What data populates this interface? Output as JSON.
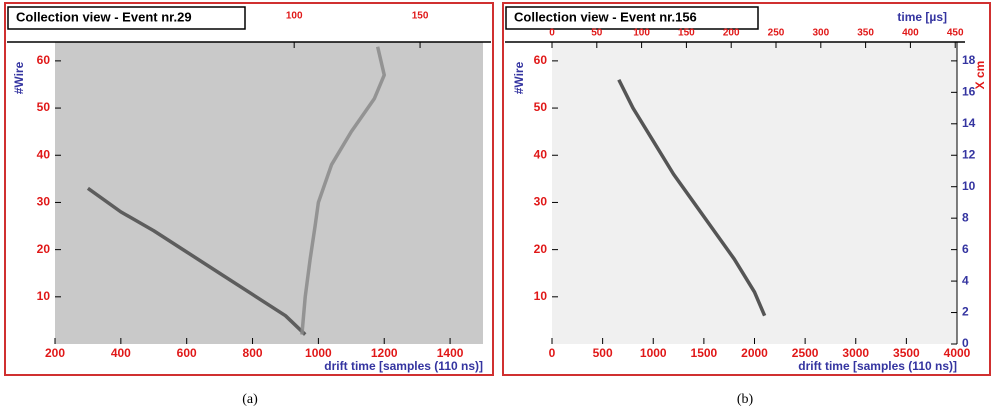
{
  "chart_data": [
    {
      "type": "line",
      "title": "Collection view - Event nr.29",
      "caption": "(a)",
      "xlabel": "drift time [samples (110 ns)]",
      "ylabel": "#Wire",
      "xlim": [
        200,
        1500
      ],
      "xticks": [
        200,
        400,
        600,
        800,
        1000,
        1200,
        1400
      ],
      "ylim": [
        0,
        64
      ],
      "yticks": [
        10,
        20,
        30,
        40,
        50,
        60
      ],
      "x2lim": [
        5,
        175
      ],
      "x2ticks": [
        100,
        150
      ],
      "background": "#c9c9c9",
      "series": [
        {
          "color": "#4a4a4a",
          "x": [
            300,
            400,
            500,
            600,
            700,
            800,
            900,
            960
          ],
          "values": [
            33,
            28,
            24,
            19.5,
            15,
            10.5,
            6,
            2
          ]
        },
        {
          "color": "#8a8a8a",
          "x": [
            950,
            960,
            975,
            990,
            1000,
            1040,
            1100,
            1170,
            1200,
            1180
          ],
          "values": [
            2,
            10,
            18,
            25,
            30,
            38,
            45,
            52,
            57,
            63
          ]
        }
      ]
    },
    {
      "type": "line",
      "title": "Collection view - Event nr.156",
      "caption": "(b)",
      "xlabel": "drift time [samples (110 ns)]",
      "ylabel": "#Wire",
      "xlim": [
        0,
        4000
      ],
      "xticks": [
        0,
        500,
        1000,
        1500,
        2000,
        2500,
        3000,
        3500,
        4000
      ],
      "ylim": [
        0,
        64
      ],
      "yticks": [
        10,
        20,
        30,
        40,
        50,
        60
      ],
      "x2lim": [
        0,
        452
      ],
      "x2ticks": [
        0,
        50,
        100,
        150,
        200,
        250,
        300,
        350,
        400,
        450
      ],
      "x2label": "time [µs]",
      "y2lim": [
        0,
        19.2
      ],
      "y2ticks": [
        0,
        2,
        4,
        6,
        8,
        10,
        12,
        14,
        16,
        18
      ],
      "y2label": "X cm",
      "background": "#f0f0f0",
      "series": [
        {
          "color": "#3a3a3a",
          "x": [
            660,
            800,
            1000,
            1200,
            1400,
            1600,
            1800,
            2000,
            2100
          ],
          "values": [
            56,
            50,
            43,
            36,
            30,
            24,
            18,
            11,
            6
          ]
        }
      ]
    }
  ]
}
